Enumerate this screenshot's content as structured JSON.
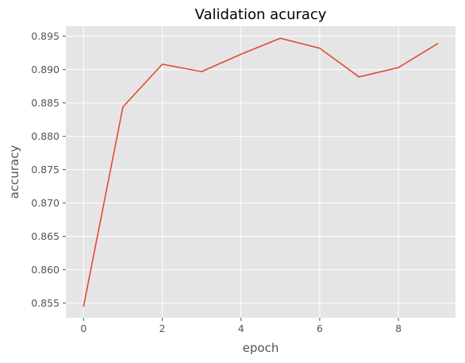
{
  "chart_data": {
    "type": "line",
    "title": "Validation acuracy",
    "xlabel": "epoch",
    "ylabel": "accuracy",
    "x": [
      0,
      1,
      2,
      3,
      4,
      5,
      6,
      7,
      8,
      9
    ],
    "series": [
      {
        "values": [
          0.8545,
          0.8844,
          0.8908,
          0.8897,
          0.8923,
          0.8947,
          0.8932,
          0.8889,
          0.8903,
          0.8939
        ]
      }
    ],
    "xlim": [
      -0.45,
      9.45
    ],
    "ylim": [
      0.8528,
      0.8965
    ],
    "xticks": [
      0,
      2,
      4,
      6,
      8
    ],
    "yticks": [
      0.855,
      0.86,
      0.865,
      0.87,
      0.875,
      0.88,
      0.885,
      0.89,
      0.895
    ],
    "xtick_labels": [
      "0",
      "2",
      "4",
      "6",
      "8"
    ],
    "ytick_labels": [
      "0.855",
      "0.860",
      "0.865",
      "0.870",
      "0.875",
      "0.880",
      "0.885",
      "0.890",
      "0.895"
    ],
    "grid": true,
    "legend": "none",
    "colors": {
      "plot_background": "#e5e5e5",
      "line": "#e24a33",
      "grid": "#ffffff",
      "text": "#555555"
    }
  }
}
